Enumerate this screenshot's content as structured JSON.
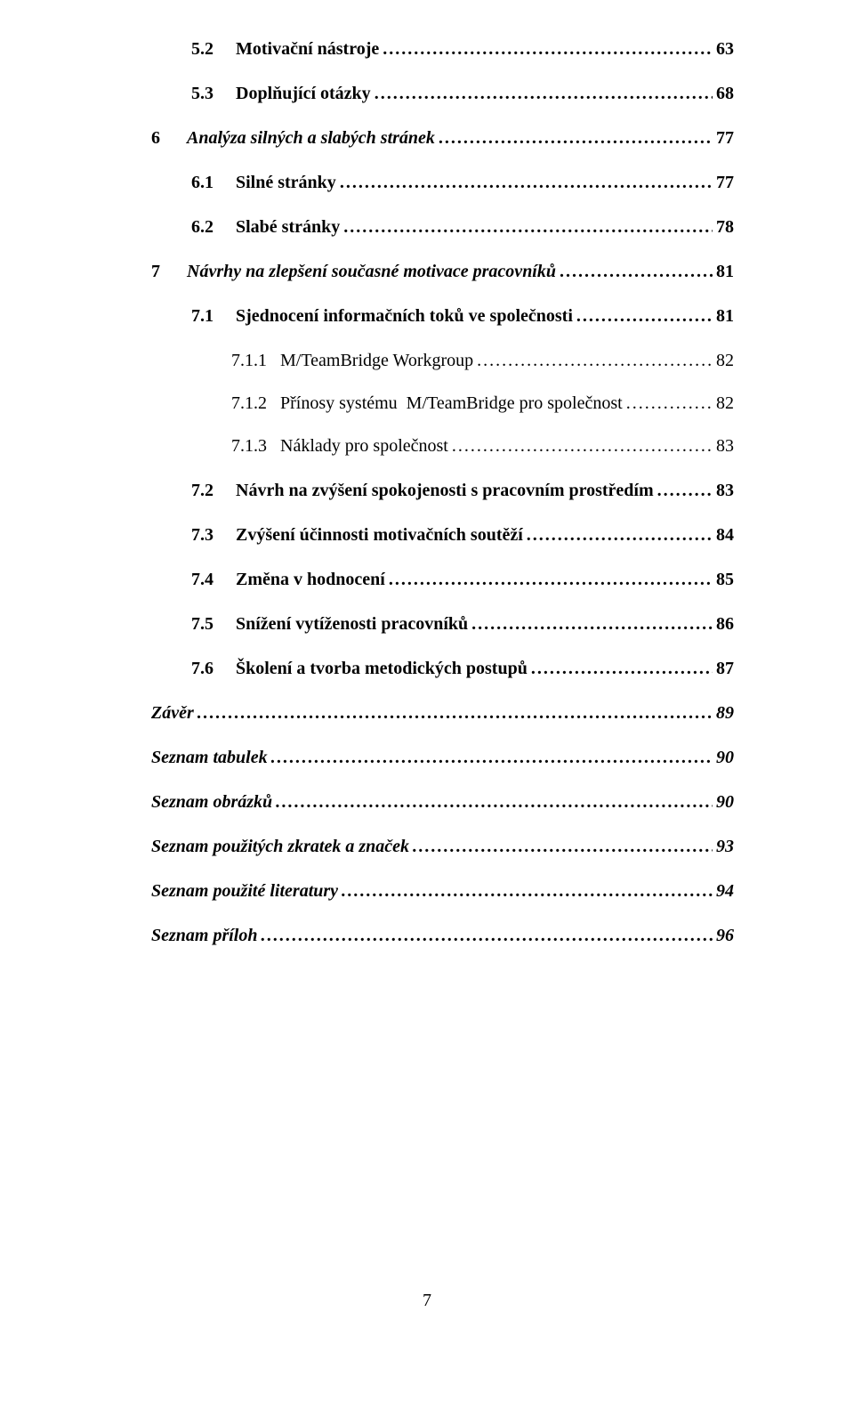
{
  "style": {
    "font_family": "Times New Roman",
    "font_size_pt": 15,
    "text_color": "#000000",
    "background_color": "#ffffff",
    "leader_char": "."
  },
  "entries": [
    {
      "level": "sub1",
      "bold": true,
      "italic": false,
      "num": "5.2",
      "title": "Motivační nástroje",
      "page": "63"
    },
    {
      "level": "sub1",
      "bold": true,
      "italic": false,
      "num": "5.3",
      "title": "Doplňující otázky",
      "page": "68"
    },
    {
      "level": "flush",
      "bold": true,
      "italic": false,
      "num": "6",
      "title": "Analýza silných a slabých stránek",
      "page": "77",
      "flushItalic": true
    },
    {
      "level": "sub1",
      "bold": true,
      "italic": false,
      "num": "6.1",
      "title": "Silné stránky",
      "page": "77"
    },
    {
      "level": "sub1",
      "bold": true,
      "italic": false,
      "num": "6.2",
      "title": "Slabé stránky",
      "page": "78"
    },
    {
      "level": "flush",
      "bold": true,
      "italic": false,
      "num": "7",
      "title": "Návrhy na zlepšení současné motivace pracovníků",
      "page": "81",
      "flushItalic": true
    },
    {
      "level": "sub1",
      "bold": true,
      "italic": false,
      "num": "7.1",
      "title": "Sjednocení informačních toků ve společnosti",
      "page": "81"
    },
    {
      "level": "sub2",
      "bold": false,
      "italic": false,
      "num": "7.1.1",
      "title": "M/TeamBridge Workgroup",
      "page": "82"
    },
    {
      "level": "sub2",
      "bold": false,
      "italic": false,
      "num": "7.1.2",
      "title": "Přínosy systému  M/TeamBridge pro společnost",
      "page": "82"
    },
    {
      "level": "sub2",
      "bold": false,
      "italic": false,
      "num": "7.1.3",
      "title": "Náklady pro společnost",
      "page": "83"
    },
    {
      "level": "sub1",
      "bold": true,
      "italic": false,
      "num": "7.2",
      "title": "Návrh na zvýšení spokojenosti s pracovním prostředím",
      "page": "83"
    },
    {
      "level": "sub1",
      "bold": true,
      "italic": false,
      "num": "7.3",
      "title": "Zvýšení účinnosti motivačních soutěží",
      "page": "84"
    },
    {
      "level": "sub1",
      "bold": true,
      "italic": false,
      "num": "7.4",
      "title": "Změna v hodnocení",
      "page": "85"
    },
    {
      "level": "sub1",
      "bold": true,
      "italic": false,
      "num": "7.5",
      "title": "Snížení vytíženosti pracovníků",
      "page": "86"
    },
    {
      "level": "sub1",
      "bold": true,
      "italic": false,
      "num": "7.6",
      "title": "Školení a tvorba metodických postupů",
      "page": "87"
    },
    {
      "level": "flush",
      "bold": true,
      "italic": true,
      "num": "",
      "title": "Závěr",
      "page": "89"
    },
    {
      "level": "flush",
      "bold": true,
      "italic": true,
      "num": "",
      "title": "Seznam tabulek",
      "page": "90"
    },
    {
      "level": "flush",
      "bold": true,
      "italic": true,
      "num": "",
      "title": "Seznam obrázků",
      "page": "90"
    },
    {
      "level": "flush",
      "bold": true,
      "italic": true,
      "num": "",
      "title": "Seznam použitých zkratek a značek",
      "page": "93"
    },
    {
      "level": "flush",
      "bold": true,
      "italic": true,
      "num": "",
      "title": "Seznam použité literatury",
      "page": "94"
    },
    {
      "level": "flush",
      "bold": true,
      "italic": true,
      "num": "",
      "title": "Seznam příloh",
      "page": "96"
    }
  ],
  "page_number": "7"
}
